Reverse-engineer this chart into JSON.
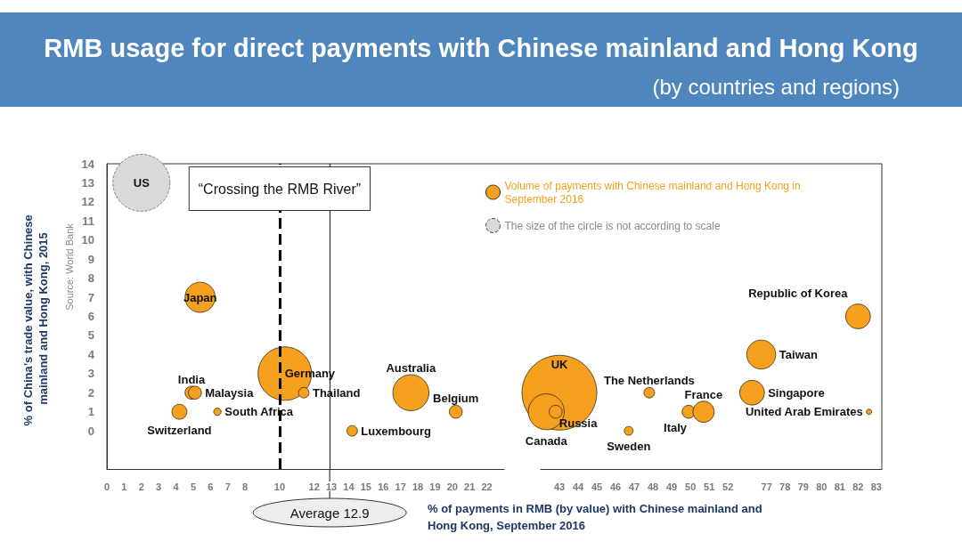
{
  "chart_data": [
    {
      "type": "bubble",
      "title": "RMB usage for direct payments with Chinese mainland and Hong Kong",
      "xlabel": "% of payments in RMB (by value) with Chinese mainland and Hong Kong, September 2016",
      "ylabel": "% of China’s trade value, with Chinese mainland and Hong Kong, 2015",
      "series": [
        {
          "name": "Volume of payments with Chinese mainland and Hong Kong in September 2016",
          "color": "#f5a01e",
          "x": [
            4.9,
            5.1,
            4.2,
            6.4,
            5.4,
            10.3,
            11.4,
            14.2,
            17.6,
            20.2
          ],
          "values": [
            2,
            2,
            1,
            1,
            7,
            3,
            2,
            0,
            2,
            1
          ],
          "sizes": [
            0.052,
            0.052,
            0.069,
            0.017,
            0.28,
            0.88,
            0.034,
            0.034,
            0.4,
            0.052
          ]
        },
        {
          "name": "The size of the circle is not according to scale",
          "color": "#d9d9db",
          "x": [
            2
          ],
          "values": [
            13
          ],
          "sizes": [
            1
          ]
        }
      ],
      "annotations": [
        "Source: World Bank",
        {
          "text": "US",
          "x": 2,
          "y": 13
        },
        {
          "text": "Japan",
          "x": 5.4,
          "y": 7
        },
        {
          "text": "India",
          "x": 4.9,
          "y": 2
        },
        {
          "text": "Malaysia",
          "x": 5.1,
          "y": 2
        },
        {
          "text": "Switzerland",
          "x": 4.2,
          "y": 1
        },
        {
          "text": "South Africa",
          "x": 6.4,
          "y": 1
        },
        {
          "text": "Germany",
          "x": 10.3,
          "y": 3
        },
        {
          "text": "Thailand",
          "x": 11.4,
          "y": 2
        },
        {
          "text": "Luxembourg",
          "x": 14.2,
          "y": 0
        },
        {
          "text": "Australia",
          "x": 17.6,
          "y": 2
        },
        {
          "text": "Belgium",
          "x": 20.2,
          "y": 1
        }
      ],
      "ref_lines": [
        {
          "axis": "x",
          "value": 10,
          "label": "“Crossing the RMB River”",
          "line_style": "dashed",
          "color": "#000000"
        },
        {
          "axis": "x",
          "value": 12.9,
          "label": "Average 12.9",
          "color": "#333333"
        }
      ],
      "xlim": [
        0,
        23
      ],
      "xticks": [
        0,
        1,
        2,
        3,
        4,
        5,
        6,
        7,
        8,
        10,
        12,
        13,
        14,
        15,
        16,
        17,
        18,
        19,
        20,
        21,
        22
      ],
      "ylim": [
        -2,
        14
      ],
      "yticks": [
        0,
        1,
        2,
        3,
        4,
        5,
        6,
        7,
        8,
        9,
        10,
        11,
        12,
        13,
        14
      ],
      "grid": false,
      "legend": "top right",
      "marker": "circle"
    },
    {
      "type": "bubble",
      "series": [
        {
          "color": "#f5a01e",
          "x": [
            43,
            42.3,
            42.8,
            47.8,
            46.7,
            49.9,
            50.7
          ],
          "values": [
            2,
            1,
            1,
            2,
            0,
            1,
            1
          ],
          "sizes": [
            1,
            0.23,
            0.03,
            0.02,
            0.014,
            0.03,
            0.08
          ]
        }
      ],
      "annotations": [
        {
          "text": "UK",
          "x": 43,
          "y": 2
        },
        {
          "text": "Canada",
          "x": 42.3,
          "y": 1
        },
        {
          "text": "Russia",
          "x": 42.8,
          "y": 1
        },
        {
          "text": "The Netherlands",
          "x": 47.8,
          "y": 2
        },
        {
          "text": "Sweden",
          "x": 46.7,
          "y": 0
        },
        {
          "text": "Italy",
          "x": 49.9,
          "y": 1
        },
        {
          "text": "France",
          "x": 50.7,
          "y": 1
        }
      ],
      "xlim": [
        42,
        52.8
      ],
      "xticks": [
        43,
        44,
        45,
        46,
        47,
        48,
        49,
        50,
        51,
        52
      ],
      "ylim": [
        -2,
        14
      ],
      "tick_labels": "x",
      "grid": false,
      "marker": "circle"
    },
    {
      "type": "bubble",
      "subtitle": "(by countries and regions)",
      "series": [
        {
          "color": "#f5a01e",
          "x": [
            76.7,
            76.2,
            82,
            82.6
          ],
          "values": [
            4,
            2,
            6,
            1
          ],
          "sizes": [
            1,
            0.73,
            0.73,
            0.033
          ]
        }
      ],
      "annotations": [
        {
          "text": "Taiwan",
          "x": 76.7,
          "y": 4
        },
        {
          "text": "Singapore",
          "x": 76.2,
          "y": 2
        },
        {
          "text": "Republic of Korea",
          "x": 82,
          "y": 6
        },
        {
          "text": "United Arab Emirates",
          "x": 82.6,
          "y": 1
        }
      ],
      "xlim": [
        75.6,
        83.3
      ],
      "xticks": [
        77,
        78,
        79,
        80,
        81,
        82,
        83
      ],
      "ylim": [
        -2,
        14
      ],
      "tick_labels": "x",
      "grid": false,
      "marker": "circle"
    }
  ]
}
